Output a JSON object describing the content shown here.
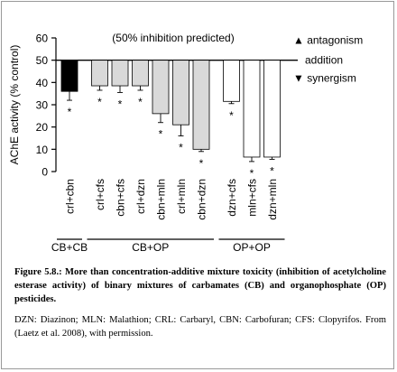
{
  "chart_data": {
    "type": "bar",
    "title": "(50% inhibition predicted)",
    "y_label": "AChE activity (% control)",
    "categories": [
      "crl+cbn",
      "crl+cfs",
      "cbn+cfs",
      "crl+dzn",
      "cbn+mln",
      "crl+mln",
      "cbn+dzn",
      "dzn+cfs",
      "mln+cfs",
      "dzn+mln"
    ],
    "values": [
      36,
      38.5,
      38.5,
      38.5,
      26,
      21,
      10,
      31.5,
      6.5,
      6.5
    ],
    "errors": [
      4,
      2,
      3,
      2,
      4,
      5,
      1,
      1,
      2,
      1
    ],
    "markers": [
      "*",
      "*",
      "*",
      "*",
      "*",
      "*",
      "*",
      "*",
      "*",
      "*"
    ],
    "colors": [
      "#000000",
      "#d9d9d9",
      "#d9d9d9",
      "#d9d9d9",
      "#d9d9d9",
      "#d9d9d9",
      "#d9d9d9",
      "#ffffff",
      "#ffffff",
      "#ffffff"
    ],
    "groups": [
      {
        "label": "CB+CB",
        "count": 1
      },
      {
        "label": "CB+OP",
        "count": 6
      },
      {
        "label": "OP+OP",
        "count": 3
      }
    ],
    "reference": 50,
    "reference_labels": [
      "▲ antagonism",
      "addition",
      "▼ synergism"
    ],
    "ylim": [
      0,
      60
    ],
    "yticks": [
      0,
      10,
      20,
      30,
      40,
      50,
      60
    ]
  },
  "caption": {
    "title": "Figure 5.8.: More than concentration-additive mixture toxicity (inhibition of acetylcholine esterase activity) of binary mixtures of carbamates (CB) and organophosphate (OP) pesticides.",
    "note": "DZN: Diazinon; MLN: Malathion; CRL: Carbaryl, CBN: Carbofuran; CFS: Clopyrifos. From (Laetz et al. 2008), with permission."
  }
}
